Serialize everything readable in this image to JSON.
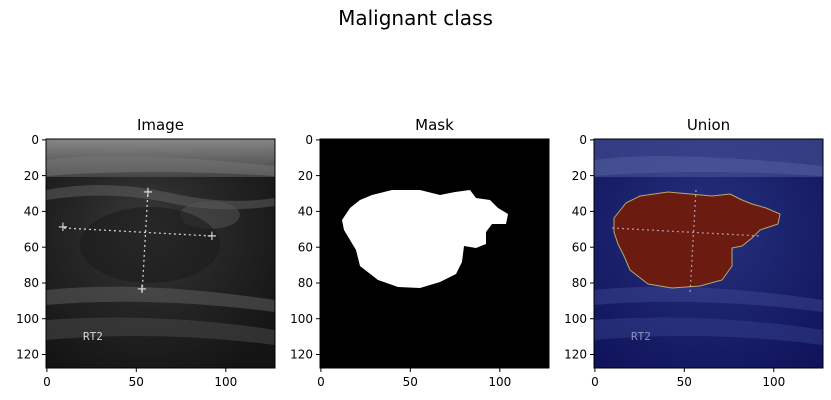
{
  "figure": {
    "title": "Malignant class"
  },
  "panels": [
    {
      "title": "Image",
      "xticks": [
        "0",
        "50",
        "100"
      ],
      "yticks": [
        "0",
        "20",
        "40",
        "60",
        "80",
        "100",
        "120"
      ],
      "overlay_text": "RT2"
    },
    {
      "title": "Mask",
      "xticks": [
        "0",
        "50",
        "100"
      ],
      "yticks": [
        "0",
        "20",
        "40",
        "60",
        "80",
        "100",
        "120"
      ]
    },
    {
      "title": "Union",
      "xticks": [
        "0",
        "50",
        "100"
      ],
      "yticks": [
        "0",
        "20",
        "40",
        "60",
        "80",
        "100",
        "120"
      ],
      "overlay_text": "RT2"
    }
  ],
  "colors": {
    "mask_fg": "#ffffff",
    "mask_bg": "#000000",
    "union_bg": "#15186a",
    "union_lesion": "#6b1b10"
  }
}
